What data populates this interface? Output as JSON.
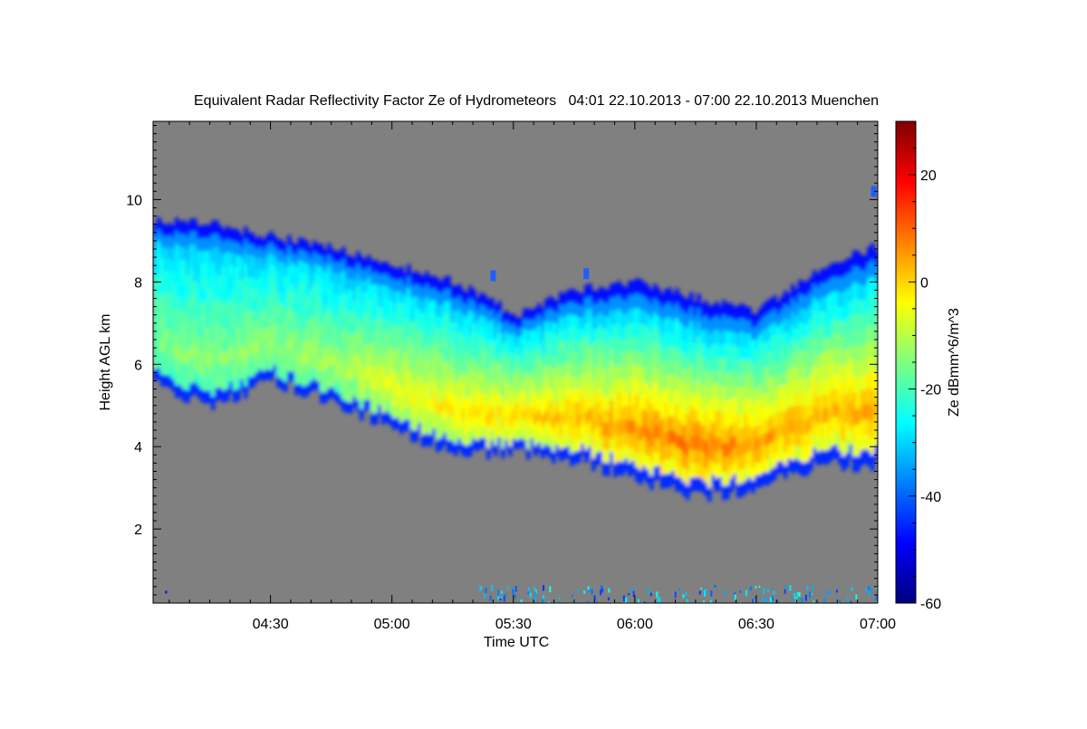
{
  "chart_data": {
    "type": "heatmap",
    "title": "Equivalent Radar Reflectivity Factor Ze of Hydrometeors   04:01 22.10.2013 - 07:00 22.10.2013 Muenchen",
    "xlabel": "Time UTC",
    "ylabel": "Height AGL km",
    "colorbar_label": "Ze dBmm^6/m^3",
    "x_range": [
      "04:01",
      "07:00"
    ],
    "x_ticks": [
      "04:30",
      "05:00",
      "05:30",
      "06:00",
      "06:30",
      "07:00"
    ],
    "y_range": [
      0.2,
      11.9
    ],
    "y_ticks": [
      2,
      4,
      6,
      8,
      10
    ],
    "colorbar_range": [
      -60,
      30
    ],
    "colorbar_ticks": [
      20,
      0,
      -20,
      -40,
      -60
    ],
    "no_data_color": "#808080",
    "colormap": "jet",
    "cloud_layer": [
      {
        "time": "04:01",
        "base_km": 5.5,
        "top_km": 9.5,
        "core_dbz": -15
      },
      {
        "time": "04:15",
        "base_km": 5.0,
        "top_km": 9.4,
        "core_dbz": -14
      },
      {
        "time": "04:30",
        "base_km": 5.6,
        "top_km": 9.1,
        "core_dbz": -13
      },
      {
        "time": "04:45",
        "base_km": 5.1,
        "top_km": 8.8,
        "core_dbz": -12
      },
      {
        "time": "05:00",
        "base_km": 4.5,
        "top_km": 8.4,
        "core_dbz": -5
      },
      {
        "time": "05:15",
        "base_km": 3.8,
        "top_km": 8.0,
        "core_dbz": -3
      },
      {
        "time": "05:30",
        "base_km": 3.9,
        "top_km": 7.2,
        "core_dbz": 0
      },
      {
        "time": "05:45",
        "base_km": 3.7,
        "top_km": 7.8,
        "core_dbz": 2
      },
      {
        "time": "06:00",
        "base_km": 3.2,
        "top_km": 8.0,
        "core_dbz": 6
      },
      {
        "time": "06:15",
        "base_km": 2.8,
        "top_km": 7.6,
        "core_dbz": 8
      },
      {
        "time": "06:30",
        "base_km": 3.0,
        "top_km": 7.3,
        "core_dbz": 5
      },
      {
        "time": "06:45",
        "base_km": 3.6,
        "top_km": 8.3,
        "core_dbz": 3
      },
      {
        "time": "07:00",
        "base_km": 3.5,
        "top_km": 8.9,
        "core_dbz": 4
      }
    ]
  }
}
